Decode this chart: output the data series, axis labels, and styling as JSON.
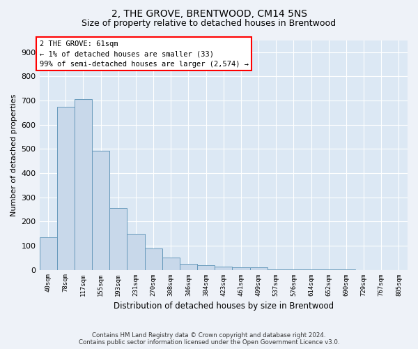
{
  "title": "2, THE GROVE, BRENTWOOD, CM14 5NS",
  "subtitle": "Size of property relative to detached houses in Brentwood",
  "xlabel": "Distribution of detached houses by size in Brentwood",
  "ylabel": "Number of detached properties",
  "footer_line1": "Contains HM Land Registry data © Crown copyright and database right 2024.",
  "footer_line2": "Contains public sector information licensed under the Open Government Licence v3.0.",
  "bar_labels": [
    "40sqm",
    "78sqm",
    "117sqm",
    "155sqm",
    "193sqm",
    "231sqm",
    "270sqm",
    "308sqm",
    "346sqm",
    "384sqm",
    "423sqm",
    "461sqm",
    "499sqm",
    "537sqm",
    "576sqm",
    "614sqm",
    "652sqm",
    "690sqm",
    "729sqm",
    "767sqm",
    "805sqm"
  ],
  "bar_values": [
    135,
    675,
    705,
    492,
    255,
    150,
    87,
    52,
    25,
    18,
    13,
    10,
    9,
    3,
    3,
    2,
    1,
    1,
    0,
    0,
    0
  ],
  "bar_color": "#c8d8ea",
  "bar_edge_color": "#6699bb",
  "annotation_text": "2 THE GROVE: 61sqm\n← 1% of detached houses are smaller (33)\n99% of semi-detached houses are larger (2,574) →",
  "ylim": [
    0,
    950
  ],
  "yticks": [
    0,
    100,
    200,
    300,
    400,
    500,
    600,
    700,
    800,
    900
  ],
  "bg_color": "#eef2f8",
  "plot_bg_color": "#dce8f4",
  "grid_color": "#ffffff",
  "title_fontsize": 10,
  "subtitle_fontsize": 9
}
